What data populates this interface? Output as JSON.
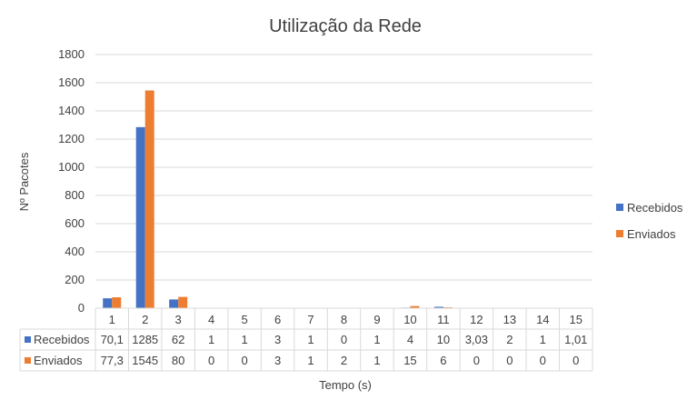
{
  "chart_data": {
    "type": "bar",
    "title": "Utilização da Rede",
    "xlabel": "Tempo (s)",
    "ylabel": "Nº Pacotes",
    "ylim": [
      0,
      1800
    ],
    "yticks": [
      "0",
      "200",
      "400",
      "600",
      "800",
      "1000",
      "1200",
      "1400",
      "1600",
      "1800"
    ],
    "grid": true,
    "legend_position": "right",
    "data_table": true,
    "categories": [
      "1",
      "2",
      "3",
      "4",
      "5",
      "6",
      "7",
      "8",
      "9",
      "10",
      "11",
      "12",
      "13",
      "14",
      "15"
    ],
    "series": [
      {
        "name": "Recebidos",
        "color": "#4472C4",
        "values": [
          70.1,
          1285,
          62,
          1,
          1,
          3,
          1,
          0,
          1,
          4,
          10,
          3.03,
          2,
          1,
          1.01
        ],
        "labels": [
          "70,1",
          "1285",
          "62",
          "1",
          "1",
          "3",
          "1",
          "0",
          "1",
          "4",
          "10",
          "3,03",
          "2",
          "1",
          "1,01"
        ]
      },
      {
        "name": "Enviados",
        "color": "#ED7D31",
        "values": [
          77.3,
          1545,
          80,
          0,
          0,
          3,
          1,
          2,
          1,
          15,
          6,
          0,
          0,
          0,
          0
        ],
        "labels": [
          "77,3",
          "1545",
          "80",
          "0",
          "0",
          "3",
          "1",
          "2",
          "1",
          "15",
          "6",
          "0",
          "0",
          "0",
          "0"
        ]
      }
    ]
  }
}
